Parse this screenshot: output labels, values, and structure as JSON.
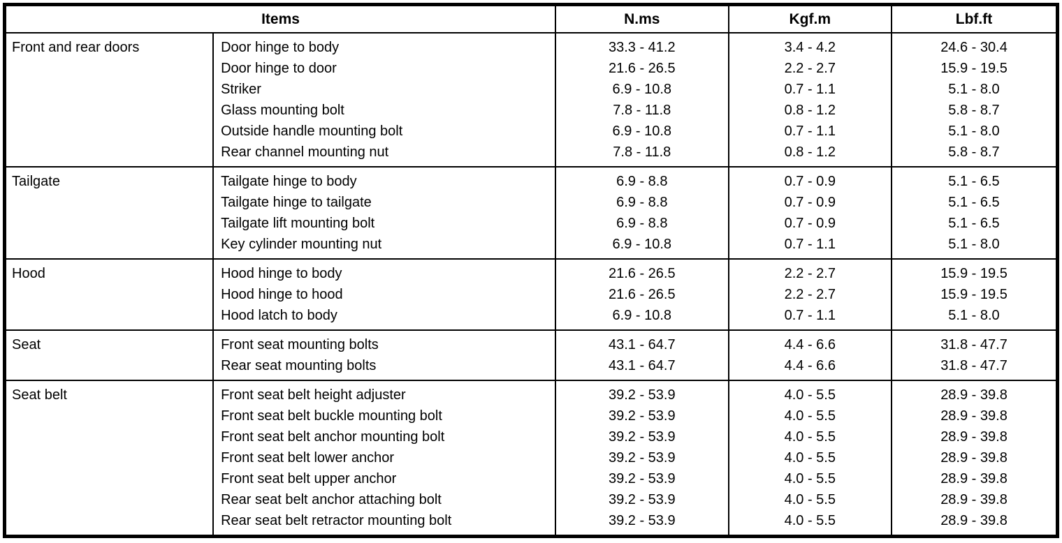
{
  "colors": {
    "border": "#000000",
    "text": "#000000",
    "background": "#ffffff"
  },
  "table": {
    "headers": {
      "items": "Items",
      "nms": "N.ms",
      "kgfm": "Kgf.m",
      "lbfft": "Lbf.ft"
    },
    "sections": [
      {
        "category": "Front and rear doors",
        "rows": [
          {
            "item": "Door hinge to body",
            "nms": "33.3 - 41.2",
            "kgfm": "3.4 - 4.2",
            "lbfft": "24.6 - 30.4"
          },
          {
            "item": "Door hinge to door",
            "nms": "21.6 - 26.5",
            "kgfm": "2.2 - 2.7",
            "lbfft": "15.9 - 19.5"
          },
          {
            "item": "Striker",
            "nms": "6.9 - 10.8",
            "kgfm": "0.7 - 1.1",
            "lbfft": "5.1 - 8.0"
          },
          {
            "item": "Glass mounting bolt",
            "nms": "7.8 - 11.8",
            "kgfm": "0.8 - 1.2",
            "lbfft": "5.8 - 8.7"
          },
          {
            "item": "Outside handle mounting bolt",
            "nms": "6.9 - 10.8",
            "kgfm": "0.7 - 1.1",
            "lbfft": "5.1 - 8.0"
          },
          {
            "item": "Rear channel mounting nut",
            "nms": "7.8 - 11.8",
            "kgfm": "0.8 - 1.2",
            "lbfft": "5.8 - 8.7"
          }
        ]
      },
      {
        "category": "Tailgate",
        "rows": [
          {
            "item": "Tailgate hinge to body",
            "nms": "6.9 - 8.8",
            "kgfm": "0.7 - 0.9",
            "lbfft": "5.1 - 6.5"
          },
          {
            "item": "Tailgate hinge to tailgate",
            "nms": "6.9 - 8.8",
            "kgfm": "0.7 - 0.9",
            "lbfft": "5.1 - 6.5"
          },
          {
            "item": "Tailgate lift mounting bolt",
            "nms": "6.9 - 8.8",
            "kgfm": "0.7 - 0.9",
            "lbfft": "5.1 - 6.5"
          },
          {
            "item": "Key cylinder mounting nut",
            "nms": "6.9 - 10.8",
            "kgfm": "0.7 - 1.1",
            "lbfft": "5.1 - 8.0"
          }
        ]
      },
      {
        "category": "Hood",
        "rows": [
          {
            "item": "Hood hinge to body",
            "nms": "21.6 - 26.5",
            "kgfm": "2.2 - 2.7",
            "lbfft": "15.9 - 19.5"
          },
          {
            "item": "Hood hinge to hood",
            "nms": "21.6 - 26.5",
            "kgfm": "2.2 - 2.7",
            "lbfft": "15.9 - 19.5"
          },
          {
            "item": "Hood latch to body",
            "nms": "6.9 - 10.8",
            "kgfm": "0.7 - 1.1",
            "lbfft": "5.1 - 8.0"
          }
        ]
      },
      {
        "category": "Seat",
        "rows": [
          {
            "item": "Front seat mounting bolts",
            "nms": "43.1 - 64.7",
            "kgfm": "4.4 - 6.6",
            "lbfft": "31.8 - 47.7"
          },
          {
            "item": "Rear seat mounting bolts",
            "nms": "43.1 - 64.7",
            "kgfm": "4.4 - 6.6",
            "lbfft": "31.8 - 47.7"
          }
        ]
      },
      {
        "category": "Seat belt",
        "rows": [
          {
            "item": "Front seat belt height adjuster",
            "nms": "39.2 - 53.9",
            "kgfm": "4.0 - 5.5",
            "lbfft": "28.9 - 39.8"
          },
          {
            "item": "Front seat belt buckle mounting bolt",
            "nms": "39.2 - 53.9",
            "kgfm": "4.0 - 5.5",
            "lbfft": "28.9 - 39.8"
          },
          {
            "item": "Front seat belt anchor mounting bolt",
            "nms": "39.2 - 53.9",
            "kgfm": "4.0 - 5.5",
            "lbfft": "28.9 - 39.8"
          },
          {
            "item": "Front seat belt lower anchor",
            "nms": "39.2 - 53.9",
            "kgfm": "4.0 - 5.5",
            "lbfft": "28.9 - 39.8"
          },
          {
            "item": "Front seat belt upper anchor",
            "nms": "39.2 - 53.9",
            "kgfm": "4.0 - 5.5",
            "lbfft": "28.9 - 39.8"
          },
          {
            "item": "Rear seat belt anchor attaching bolt",
            "nms": "39.2 - 53.9",
            "kgfm": "4.0 - 5.5",
            "lbfft": "28.9 - 39.8"
          },
          {
            "item": "Rear seat belt retractor mounting bolt",
            "nms": "39.2 - 53.9",
            "kgfm": "4.0 - 5.5",
            "lbfft": "28.9 - 39.8"
          }
        ]
      }
    ]
  }
}
